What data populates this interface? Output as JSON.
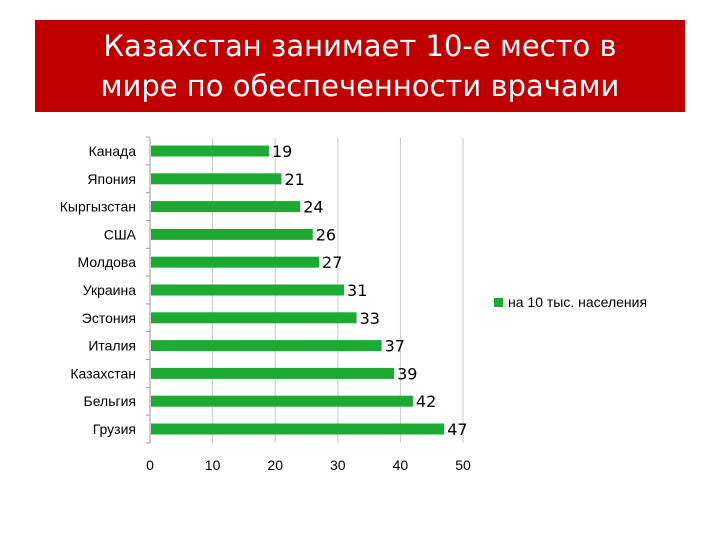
{
  "title": {
    "line1": "Казахстан занимает 10-е место в",
    "line2": "мире по обеспеченности врачами"
  },
  "colors": {
    "title_bg": "#c00000",
    "bar": "#1daa32",
    "grid": "#c8c8c8"
  },
  "chart_data": {
    "type": "bar",
    "orientation": "horizontal",
    "categories": [
      "Канада",
      "Япония",
      "Кыргызстан",
      "США",
      "Молдова",
      "Украина",
      "Эстония",
      "Италия",
      "Казахстан",
      "Бельгия",
      "Грузия"
    ],
    "series": [
      {
        "name": "на 10 тыс. населения",
        "values": [
          19,
          21,
          24,
          26,
          27,
          31,
          33,
          37,
          39,
          42,
          47
        ]
      }
    ],
    "xlim": [
      0,
      50
    ],
    "xticks": [
      0,
      10,
      20,
      30,
      40,
      50
    ],
    "grid": true,
    "legend_position": "right"
  }
}
